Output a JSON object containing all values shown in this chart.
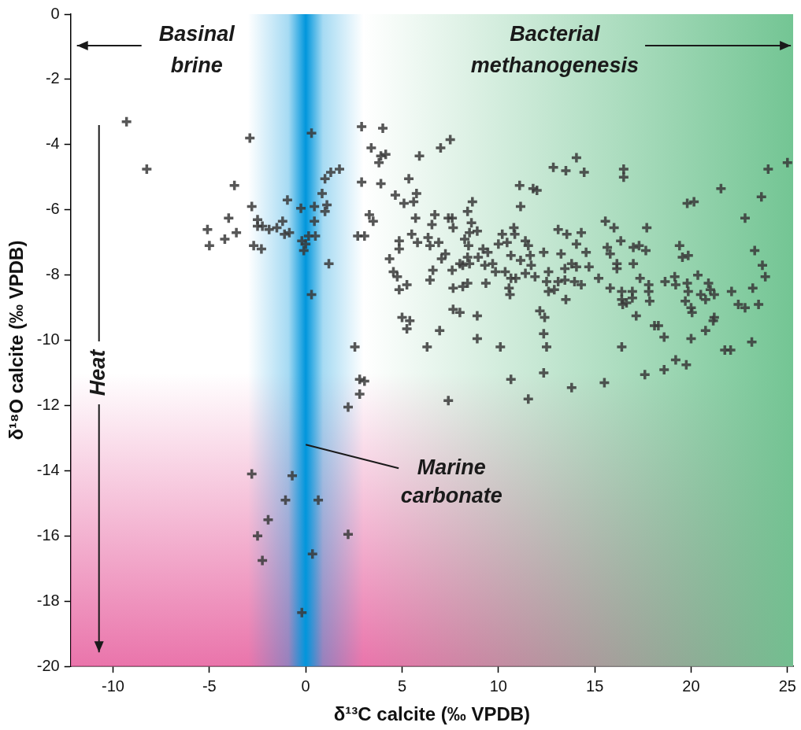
{
  "chart_data": {
    "type": "scatter",
    "xlabel": "δ¹³C calcite (‰ VPDB)",
    "ylabel": "δ¹⁸O calcite (‰ VPDB)",
    "xlim": [
      -12.2,
      25.3
    ],
    "xticks": [
      -10,
      -5,
      0,
      5,
      10,
      15,
      20,
      25
    ],
    "ylim": [
      -20,
      0
    ],
    "yticks": [
      -20,
      -18,
      -16,
      -14,
      -12,
      -10,
      -8,
      -6,
      -4,
      -2,
      0
    ],
    "marker": "cross",
    "series": [
      {
        "color": "#3a3a3a",
        "x": [
          -9.3,
          -8.25,
          -2.9,
          0.3,
          -3.7,
          -0.95,
          -2.8,
          -0.25,
          0.45,
          -4.0,
          -5.1,
          -5.0,
          -4.2,
          -3.6,
          -2.7,
          -2.3,
          -2.5,
          -2.5,
          -2.25,
          -1.9,
          -1.5,
          -1.2,
          -1.1,
          -0.85,
          -0.2,
          0.15,
          0.0,
          -0.1,
          0.45,
          0.5,
          0.3,
          2.9,
          4.0,
          3.4,
          4.15,
          3.9,
          3.8,
          5.9,
          7.0,
          7.5,
          1.75,
          1.3,
          1.0,
          0.85,
          1.1,
          1.0,
          1.2,
          2.9,
          3.9,
          5.35,
          4.65,
          5.1,
          5.6,
          5.75,
          8.65,
          8.4,
          11.1,
          11.8,
          12.0,
          11.15,
          3.3,
          3.5,
          5.7,
          6.7,
          6.55,
          7.4,
          7.6,
          7.65,
          8.6,
          8.5,
          8.9,
          8.25,
          8.45,
          2.7,
          3.05,
          5.5,
          5.8,
          6.35,
          6.45,
          6.9,
          4.85,
          4.85,
          4.35,
          7.25,
          7.05,
          4.55,
          4.75,
          4.85,
          5.25,
          6.6,
          6.45,
          7.6,
          8.0,
          8.4,
          8.15,
          8.5,
          7.65,
          8.15,
          8.4,
          8.95,
          9.2,
          9.45,
          9.3,
          9.7,
          9.85,
          9.35,
          10.0,
          10.2,
          10.45,
          10.8,
          10.85,
          10.65,
          11.15,
          10.35,
          10.65,
          10.9,
          10.55,
          10.6,
          11.4,
          11.55,
          11.65,
          12.35,
          11.7,
          11.4,
          11.9,
          12.5,
          7.65,
          8.0,
          8.9,
          12.15,
          5.0,
          5.4,
          5.25,
          6.95,
          8.9,
          10.1,
          6.3,
          2.55,
          2.8,
          3.05,
          2.8,
          2.2,
          7.4,
          10.65,
          11.55,
          12.35,
          12.35,
          12.5,
          12.4,
          14.05,
          12.85,
          13.5,
          14.45,
          16.5,
          16.5,
          25.0,
          24.0,
          21.55,
          23.65,
          19.8,
          20.15,
          22.8,
          15.55,
          16.0,
          17.7,
          13.1,
          13.55,
          14.3,
          14.05,
          16.35,
          15.65,
          15.8,
          14.55,
          13.25,
          17.0,
          17.3,
          17.65,
          19.4,
          19.55,
          19.85,
          23.3,
          23.7,
          23.85,
          17.0,
          16.15,
          16.15,
          13.8,
          14.05,
          13.45,
          14.7,
          12.6,
          15.2,
          13.1,
          13.45,
          13.95,
          14.3,
          12.6,
          12.9,
          13.5,
          17.35,
          15.8,
          16.4,
          16.4,
          16.45,
          16.65,
          16.95,
          16.95,
          17.8,
          17.8,
          17.85,
          17.15,
          18.65,
          19.15,
          19.2,
          19.8,
          19.85,
          20.35,
          19.7,
          20.0,
          20.05,
          20.9,
          21.0,
          20.5,
          20.75,
          21.2,
          21.2,
          22.1,
          22.45,
          22.8,
          23.2,
          23.5,
          18.1,
          18.3,
          18.6,
          20.0,
          20.75,
          21.15,
          21.75,
          22.05,
          23.15,
          16.4,
          19.2,
          19.75,
          18.6,
          17.6,
          15.5,
          13.8,
          -2.8,
          -0.7,
          -1.05,
          0.65,
          -1.95,
          -2.5,
          2.2,
          -2.25,
          0.35,
          -0.2
        ],
        "values": [
          -3.3,
          -4.75,
          -3.8,
          -3.65,
          -5.25,
          -5.7,
          -5.9,
          -5.95,
          -5.9,
          -6.25,
          -6.6,
          -7.1,
          -6.9,
          -6.7,
          -7.1,
          -7.2,
          -6.3,
          -6.5,
          -6.5,
          -6.6,
          -6.55,
          -6.35,
          -6.75,
          -6.7,
          -6.95,
          -6.8,
          -7.05,
          -7.25,
          -6.35,
          -6.8,
          -8.6,
          -3.45,
          -3.5,
          -4.1,
          -4.3,
          -4.35,
          -4.55,
          -4.35,
          -4.1,
          -3.85,
          -4.75,
          -4.85,
          -5.05,
          -5.5,
          -5.85,
          -6.05,
          -7.65,
          -5.15,
          -5.2,
          -5.05,
          -5.55,
          -5.8,
          -5.75,
          -5.5,
          -5.75,
          -6.05,
          -5.25,
          -5.35,
          -5.4,
          -5.9,
          -6.15,
          -6.35,
          -6.25,
          -6.15,
          -6.45,
          -6.25,
          -6.25,
          -6.55,
          -6.4,
          -6.7,
          -6.65,
          -6.9,
          -7.1,
          -6.8,
          -6.8,
          -6.75,
          -7.0,
          -6.85,
          -7.1,
          -7.0,
          -6.95,
          -7.2,
          -7.5,
          -7.35,
          -7.5,
          -7.9,
          -8.05,
          -8.45,
          -8.3,
          -7.85,
          -8.15,
          -7.85,
          -7.65,
          -7.45,
          -7.7,
          -7.65,
          -8.4,
          -8.35,
          -8.25,
          -7.45,
          -7.2,
          -7.3,
          -7.7,
          -7.65,
          -7.9,
          -8.25,
          -7.05,
          -6.75,
          -7.0,
          -6.55,
          -6.75,
          -7.4,
          -7.55,
          -7.9,
          -8.1,
          -8.1,
          -8.4,
          -8.6,
          -6.95,
          -7.1,
          -7.4,
          -7.3,
          -7.7,
          -7.95,
          -8.05,
          -8.2,
          -9.05,
          -9.15,
          -9.25,
          -9.1,
          -9.3,
          -9.4,
          -9.65,
          -9.7,
          -9.95,
          -10.2,
          -10.2,
          -10.2,
          -11.2,
          -11.25,
          -11.65,
          -12.05,
          -11.85,
          -11.2,
          -11.8,
          -11.0,
          -9.8,
          -10.2,
          -9.3,
          -4.4,
          -4.7,
          -4.8,
          -4.85,
          -4.75,
          -5.0,
          -4.55,
          -4.75,
          -5.35,
          -5.6,
          -5.8,
          -5.75,
          -6.25,
          -6.35,
          -6.55,
          -6.55,
          -6.6,
          -6.75,
          -6.7,
          -7.05,
          -6.95,
          -7.15,
          -7.35,
          -7.3,
          -7.35,
          -7.15,
          -7.1,
          -7.25,
          -7.1,
          -7.45,
          -7.4,
          -7.25,
          -7.7,
          -8.05,
          -7.65,
          -7.65,
          -7.8,
          -7.65,
          -7.75,
          -7.8,
          -7.75,
          -7.9,
          -8.1,
          -8.2,
          -8.15,
          -8.2,
          -8.3,
          -8.5,
          -8.45,
          -8.75,
          -8.1,
          -8.4,
          -8.5,
          -8.75,
          -8.9,
          -8.85,
          -8.5,
          -8.7,
          -8.3,
          -8.5,
          -8.8,
          -9.25,
          -8.2,
          -8.05,
          -8.3,
          -8.25,
          -8.5,
          -8.0,
          -8.8,
          -9.0,
          -9.15,
          -8.25,
          -8.45,
          -8.6,
          -8.75,
          -8.6,
          -9.3,
          -8.5,
          -8.9,
          -9.0,
          -8.4,
          -8.9,
          -9.55,
          -9.55,
          -9.9,
          -9.95,
          -9.7,
          -9.4,
          -10.3,
          -10.3,
          -10.05,
          -10.2,
          -10.6,
          -10.75,
          -10.9,
          -11.05,
          -11.3,
          -11.45,
          -14.1,
          -14.15,
          -14.9,
          -14.9,
          -15.5,
          -16.0,
          -15.95,
          -16.75,
          -16.55,
          -18.35
        ]
      }
    ],
    "bands": [
      {
        "axis": "x",
        "from": -3,
        "to": 3,
        "label": "Marine carbonate",
        "color": "#0096dc"
      },
      {
        "axis": "x",
        "from": 3,
        "to": 25.3,
        "label": "Bacterial methanogenesis",
        "color": "#6cc28e"
      },
      {
        "axis": "y",
        "from": -11,
        "to": -20,
        "label": "Heat",
        "color": "#e65c9c"
      }
    ],
    "annotations": [
      "Basinal brine"
    ]
  }
}
